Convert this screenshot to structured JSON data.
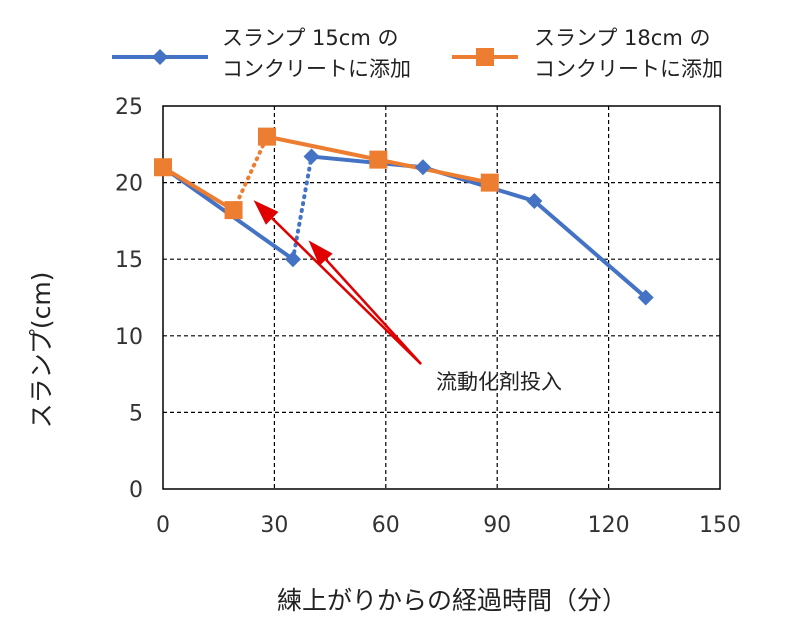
{
  "chart_data": {
    "type": "line",
    "title": "",
    "xlabel": "練上がりからの経過時間（分）",
    "ylabel": "スランプ(cm)",
    "xlim": [
      0,
      150
    ],
    "ylim": [
      0,
      25
    ],
    "x_ticks": [
      0,
      30,
      60,
      90,
      120,
      150
    ],
    "y_ticks": [
      0,
      5,
      10,
      15,
      20,
      25
    ],
    "grid": true,
    "legend_position": "top",
    "series": [
      {
        "name_line1": "スランプ 15cm の",
        "name_line2": "コンクリートに添加",
        "color": "#4472C4",
        "marker": "diamond",
        "before": [
          {
            "x": 0,
            "y": 21
          },
          {
            "x": 35,
            "y": 15
          }
        ],
        "after": [
          {
            "x": 40,
            "y": 21.7
          },
          {
            "x": 70,
            "y": 21
          },
          {
            "x": 100,
            "y": 18.8
          },
          {
            "x": 130,
            "y": 12.5
          }
        ]
      },
      {
        "name_line1": "スランプ 18cm の",
        "name_line2": "コンクリートに添加",
        "color": "#ED7D31",
        "marker": "square",
        "before": [
          {
            "x": 0,
            "y": 21
          },
          {
            "x": 19,
            "y": 18.2
          }
        ],
        "after": [
          {
            "x": 28,
            "y": 23
          },
          {
            "x": 58,
            "y": 21.5
          },
          {
            "x": 88,
            "y": 20
          }
        ]
      }
    ],
    "annotation": {
      "text": "流動化剤投入",
      "color": "#E00000"
    }
  }
}
